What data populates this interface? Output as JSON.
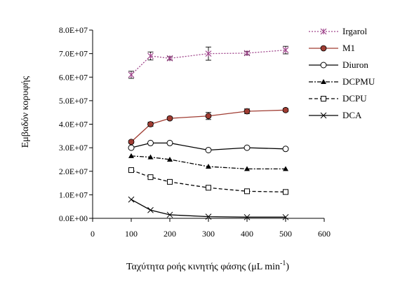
{
  "chart_data": {
    "type": "line",
    "title": "",
    "xlabel": "Ταχύτητα ροής κινητής φάσης (μL min",
    "xlabel_sup": "-1",
    "xlabel_end": ")",
    "ylabel": "Εμβαδόν κορυφής",
    "xlim": [
      0,
      600
    ],
    "ylim": [
      0,
      80000000
    ],
    "xticks": [
      0,
      100,
      200,
      300,
      400,
      500,
      600
    ],
    "xtick_labels": [
      "0",
      "100",
      "200",
      "300",
      "400",
      "500",
      "600"
    ],
    "yticks": [
      0,
      10000000,
      20000000,
      30000000,
      40000000,
      50000000,
      60000000,
      70000000,
      80000000
    ],
    "ytick_labels": [
      "0.0E+00",
      "1.0E+07",
      "2.0E+07",
      "3.0E+07",
      "4.0E+07",
      "5.0E+07",
      "6.0E+07",
      "7.0E+07",
      "8.0E+07"
    ],
    "legend_position": "top-right",
    "grid": false,
    "x": [
      100,
      150,
      200,
      300,
      400,
      500
    ],
    "series": [
      {
        "name": "Irgarol",
        "values": [
          61000000,
          69000000,
          68000000,
          70000000,
          70200000,
          71500000
        ],
        "errors": [
          1500000,
          1700000,
          700000,
          2800000,
          700000,
          1600000
        ],
        "color": "#a0468c",
        "dash": "2,2",
        "marker": "star"
      },
      {
        "name": "M1",
        "values": [
          32500000,
          40000000,
          42500000,
          43500000,
          45500000,
          46000000
        ],
        "errors": [
          600000,
          900000,
          600000,
          1500000,
          1000000,
          700000
        ],
        "color": "#a03c32",
        "dash": "",
        "marker": "filled-circle"
      },
      {
        "name": "Diuron",
        "values": [
          30000000,
          32000000,
          32000000,
          29000000,
          30000000,
          29500000
        ],
        "errors": [
          0,
          0,
          0,
          0,
          0,
          0
        ],
        "color": "#000000",
        "dash": "",
        "marker": "open-circle"
      },
      {
        "name": "DCPMU",
        "values": [
          26500000,
          26000000,
          25000000,
          22000000,
          21000000,
          21000000
        ],
        "errors": [
          0,
          0,
          0,
          0,
          0,
          0
        ],
        "color": "#000000",
        "dash": "6,2,2,2",
        "marker": "triangle"
      },
      {
        "name": "DCPU",
        "values": [
          20500000,
          17500000,
          15500000,
          13000000,
          11500000,
          11200000
        ],
        "errors": [
          0,
          0,
          0,
          0,
          0,
          0
        ],
        "color": "#000000",
        "dash": "5,3",
        "marker": "open-square"
      },
      {
        "name": "DCA",
        "values": [
          8000000,
          3500000,
          1500000,
          700000,
          500000,
          500000
        ],
        "errors": [
          0,
          0,
          0,
          0,
          0,
          0
        ],
        "color": "#000000",
        "dash": "",
        "marker": "x"
      }
    ]
  }
}
